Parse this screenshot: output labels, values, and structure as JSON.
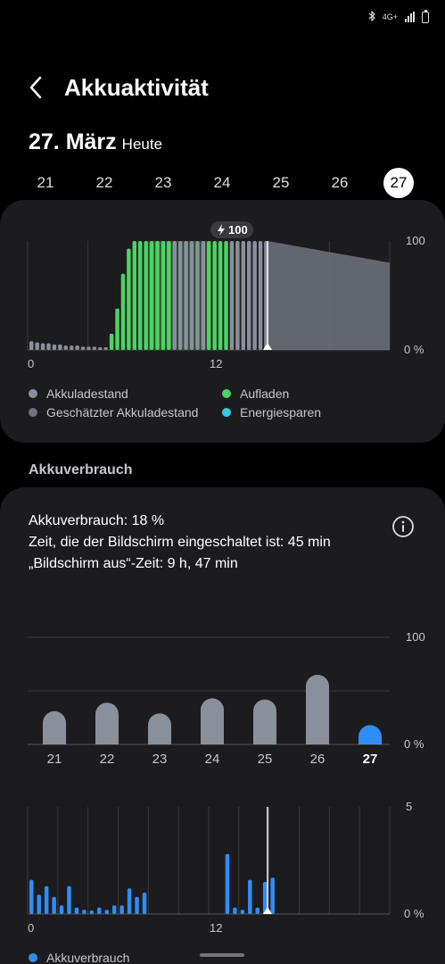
{
  "status": {
    "network": "4G+"
  },
  "header": {
    "title": "Akkuaktivität",
    "back_icon": "chevron-left-icon"
  },
  "date": {
    "main": "27. März",
    "sub": "Heute"
  },
  "days": [
    "21",
    "22",
    "23",
    "24",
    "25",
    "26",
    "27"
  ],
  "selected_day": "27",
  "battery_chart": {
    "badge": "100",
    "y_top": "100",
    "y_bottom": "0 %",
    "x_start": "0",
    "x_mid": "12"
  },
  "legend1": {
    "akkuladestand": "Akkuladestand",
    "aufladen": "Aufladen",
    "geschaetzt": "Geschätzter Akkuladestand",
    "energiesparen": "Energiesparen"
  },
  "section": {
    "title": "Akkuverbrauch"
  },
  "stats": {
    "line1": "Akkuverbrauch: 18 %",
    "line2": "Zeit, die der Bildschirm eingeschaltet ist: 45 min",
    "line3": "„Bildschirm aus“-Zeit: 9 h, 47 min"
  },
  "usage_chart": {
    "y_top": "100",
    "y_bottom": "0 %"
  },
  "hourly_chart": {
    "y_top": "5",
    "y_bottom": "0 %",
    "x_start": "0",
    "x_mid": "12"
  },
  "legend2": {
    "label": "Akkuverbrauch"
  },
  "colors": {
    "background": "#000000",
    "card": "#1c1c1e",
    "grey_bar": "#8a8f9c",
    "charging": "#4ed264",
    "blue": "#2f8ef5",
    "cyan": "#35c8e0",
    "estimate": "#6e7380"
  },
  "chart_data": [
    {
      "type": "bar",
      "x_unit": "hour",
      "ylim": [
        0,
        100
      ],
      "y_ticks": [
        "100",
        "0 %"
      ],
      "x_ticks": [
        "0",
        "12"
      ],
      "series": [
        {
          "name": "Akkuladestand",
          "values": [
            8,
            7,
            6,
            6,
            5,
            5,
            4,
            4,
            4,
            3,
            3,
            3,
            2,
            2,
            15,
            38,
            70,
            93,
            100,
            100,
            100,
            100,
            100,
            100,
            100,
            100,
            100,
            100,
            100,
            100,
            100,
            100,
            100,
            100,
            100,
            100,
            100,
            100,
            100,
            100,
            100,
            100
          ],
          "states": [
            "b",
            "b",
            "b",
            "b",
            "b",
            "b",
            "b",
            "b",
            "b",
            "b",
            "b",
            "b",
            "b",
            "b",
            "c",
            "c",
            "c",
            "c",
            "c",
            "c",
            "c",
            "c",
            "c",
            "c",
            "c",
            "b",
            "b",
            "b",
            "b",
            "b",
            "b",
            "c",
            "c",
            "c",
            "c",
            "b",
            "b",
            "b",
            "b",
            "b",
            "b",
            "b"
          ]
        },
        {
          "name": "Geschätzter Akkuladestand",
          "values": [
            100,
            80
          ]
        }
      ],
      "badge": "100"
    },
    {
      "type": "bar",
      "ylim": [
        0,
        100
      ],
      "y_ticks": [
        "100",
        "0 %"
      ],
      "categories": [
        "21",
        "22",
        "23",
        "24",
        "25",
        "26",
        "27"
      ],
      "values": [
        31,
        39,
        29,
        43,
        42,
        65,
        18
      ],
      "highlight": "27"
    },
    {
      "type": "bar",
      "x_unit": "hour",
      "ylim": [
        0,
        5
      ],
      "y_ticks": [
        "5",
        "0 %"
      ],
      "x_ticks": [
        "0",
        "12"
      ],
      "values": [
        1.6,
        0.9,
        1.3,
        0.8,
        0.4,
        1.3,
        0.3,
        0.2,
        0.1,
        0.3,
        0.2,
        0.4,
        0.4,
        1.2,
        0.8,
        1.0,
        0,
        0,
        0,
        0,
        0,
        0,
        0,
        0,
        0,
        0,
        2.8,
        0.3,
        0.2,
        1.6,
        0.3,
        1.5,
        1.7,
        0,
        0,
        0
      ],
      "series_name": "Akkuverbrauch"
    }
  ]
}
